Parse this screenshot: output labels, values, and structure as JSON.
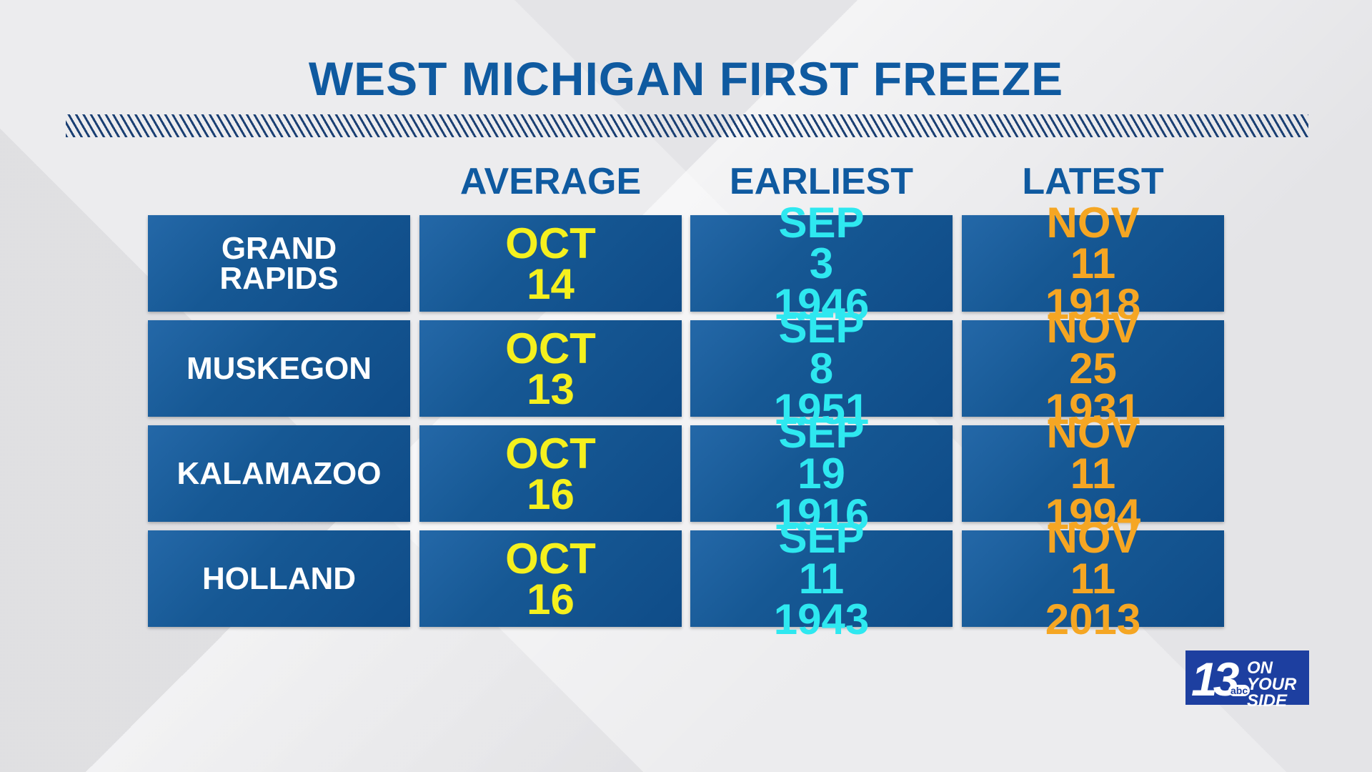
{
  "header": {
    "title": "WEST MICHIGAN FIRST FREEZE"
  },
  "table": {
    "columns": [
      "AVERAGE",
      "EARLIEST",
      "LATEST"
    ],
    "rows": [
      {
        "city": "GRAND RAPIDS",
        "cells": [
          "OCT 14",
          "SEP 3 1946",
          "NOV 11 1918"
        ]
      },
      {
        "city": "MUSKEGON",
        "cells": [
          "OCT 13",
          "SEP 8 1951",
          "NOV 25 1931"
        ]
      },
      {
        "city": "KALAMAZOO",
        "cells": [
          "OCT 16",
          "SEP 19 1916",
          "NOV 11 1994"
        ]
      },
      {
        "city": "HOLLAND",
        "cells": [
          "OCT 16",
          "SEP 11 1943",
          "NOV 11 2013"
        ]
      }
    ]
  },
  "logo": {
    "number": "13",
    "network": "abc",
    "tagline": "ON YOUR SIDE"
  }
}
